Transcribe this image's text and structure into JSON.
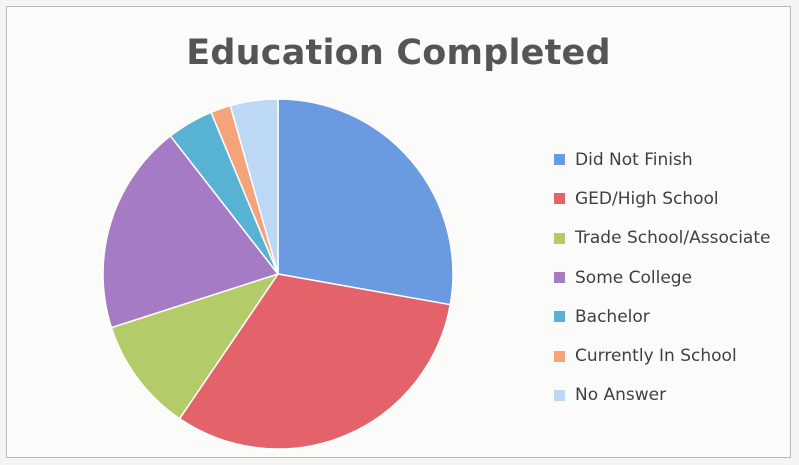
{
  "chart_data": {
    "type": "pie",
    "title": "Education Completed",
    "legend_position": "right",
    "slices": [
      {
        "label": "Did Not Finish",
        "value": 28.5,
        "color": "#6a9be0"
      },
      {
        "label": "GED/High School",
        "value": 32.5,
        "color": "#e4636b"
      },
      {
        "label": "Trade School/Associate",
        "value": 10.8,
        "color": "#b4cb6a"
      },
      {
        "label": "Some College",
        "value": 19.9,
        "color": "#a47bc4"
      },
      {
        "label": "Bachelor",
        "value": 4.4,
        "color": "#58b2d4"
      },
      {
        "label": "Currently In School",
        "value": 1.9,
        "color": "#f4a47a"
      },
      {
        "label": "No Answer",
        "value": 4.5,
        "color": "#bcd8f5"
      }
    ]
  }
}
